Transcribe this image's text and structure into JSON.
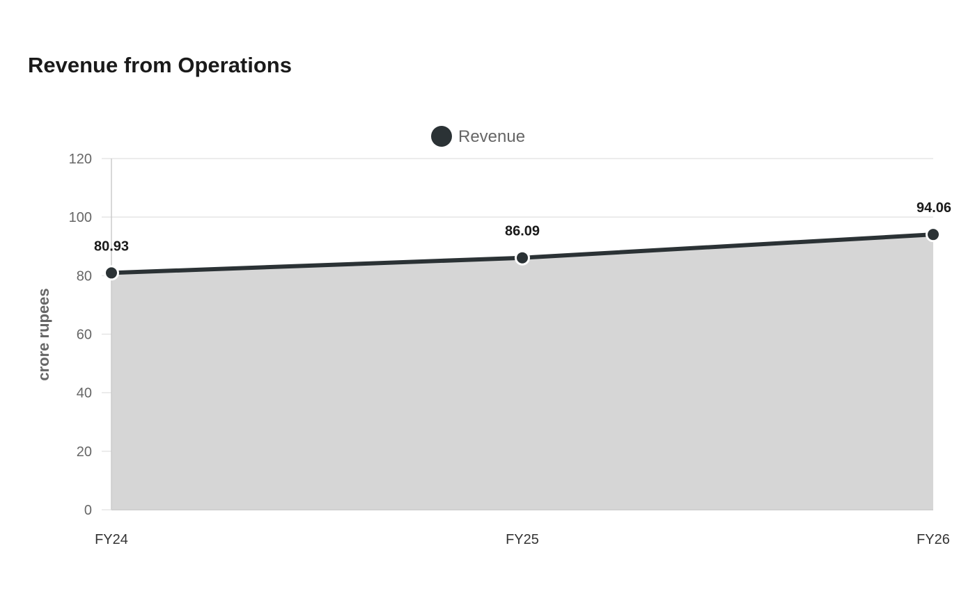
{
  "chart_data": {
    "type": "area",
    "title": "Revenue from Operations",
    "categories": [
      "FY24",
      "FY25",
      "FY26"
    ],
    "series": [
      {
        "name": "Revenue",
        "values": [
          80.93,
          86.09,
          94.06
        ],
        "data_labels": [
          "80.93",
          "86.09",
          "94.06"
        ]
      }
    ],
    "xlabel": "",
    "ylabel": "crore rupees",
    "ylim": [
      0,
      120
    ],
    "yticks": [
      "0",
      "20",
      "40",
      "60",
      "80",
      "100",
      "120"
    ],
    "grid": true,
    "legend_position": "top-center",
    "colors": {
      "line": "#2b3235",
      "area": "#d6d6d6",
      "grid": "#e5e5e5",
      "axis": "#cccccc"
    }
  }
}
